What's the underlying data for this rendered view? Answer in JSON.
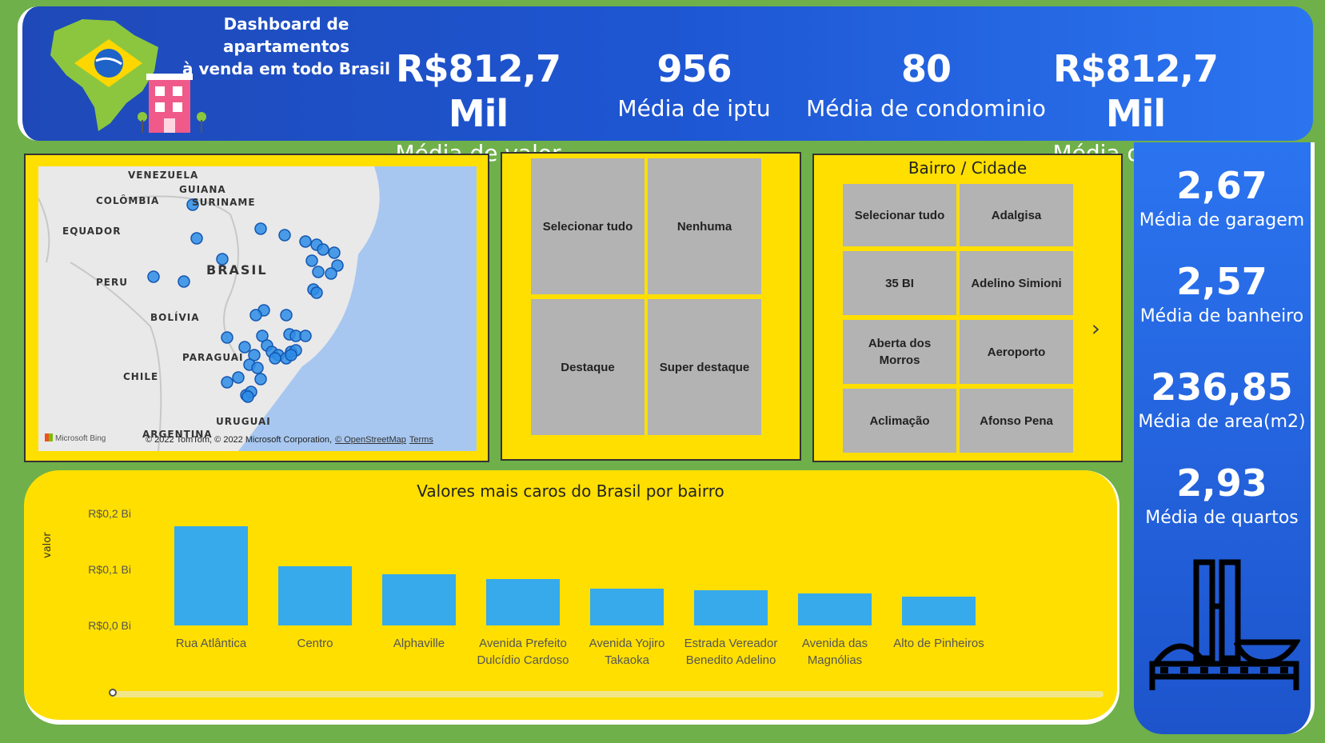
{
  "header": {
    "title_line1": "Dashboard de apartamentos",
    "title_line2": "à venda em todo Brasil",
    "kpis": [
      {
        "value": "R$812,7 Mil",
        "label": "Média de valor"
      },
      {
        "value": "956",
        "label": "Média de iptu"
      },
      {
        "value": "80",
        "label": "Média de condominio"
      },
      {
        "value": "R$812,7 Mil",
        "label": "Média de valor"
      }
    ]
  },
  "sidebar": {
    "stats": [
      {
        "value": "2,67",
        "label": "Média de garagem"
      },
      {
        "value": "2,57",
        "label": "Média de banheiro"
      },
      {
        "value": "236,85",
        "label": "Média de area(m2)"
      },
      {
        "value": "2,93",
        "label": "Média de quartos"
      }
    ],
    "icon": "congress-building-icon"
  },
  "map": {
    "labels": {
      "venezuela": "VENEZUELA",
      "guiana": "GUIANA",
      "suriname": "SURINAME",
      "colombia": "COLÔMBIA",
      "equador": "EQUADOR",
      "peru": "PERU",
      "brasil": "BRASIL",
      "bolivia": "BOLÍVIA",
      "paraguai": "PARAGUAI",
      "chile": "CHILE",
      "uruguai": "URUGUAI",
      "argentina": "ARGENTINA"
    },
    "bing": "Microsoft Bing",
    "attribution": "© 2022 TomTom, © 2022 Microsoft Corporation,",
    "osm": "© OpenStreetMap",
    "terms": "Terms"
  },
  "slicer_tipo": {
    "options": [
      "Selecionar tudo",
      "Nenhuma",
      "Destaque",
      "Super destaque"
    ]
  },
  "slicer_bairro": {
    "title": "Bairro / Cidade",
    "options": [
      "Selecionar tudo",
      "Adalgisa",
      "35 BI",
      "Adelino Simioni",
      "Aberta dos Morros",
      "Aeroporto",
      "Aclimação",
      "Afonso Pena"
    ],
    "next": "›"
  },
  "chart_data": {
    "type": "bar",
    "title": "Valores mais caros do Brasil por bairro",
    "ylabel": "valor",
    "yticks": [
      "R$0,2 Bi",
      "R$0,1 Bi",
      "R$0,0 Bi"
    ],
    "ylim": [
      0,
      0.2
    ],
    "categories": [
      "Rua Atlântica",
      "Centro",
      "Alphaville",
      "Avenida Prefeito Dulcídio Cardoso",
      "Avenida Yojiro Takaoka",
      "Estrada Vereador Benedito Adelino",
      "Avenida das Magnólias",
      "Alto de Pinheiros"
    ],
    "values": [
      0.188,
      0.112,
      0.097,
      0.088,
      0.07,
      0.066,
      0.06,
      0.055
    ],
    "bar_color": "#36aaeb"
  }
}
